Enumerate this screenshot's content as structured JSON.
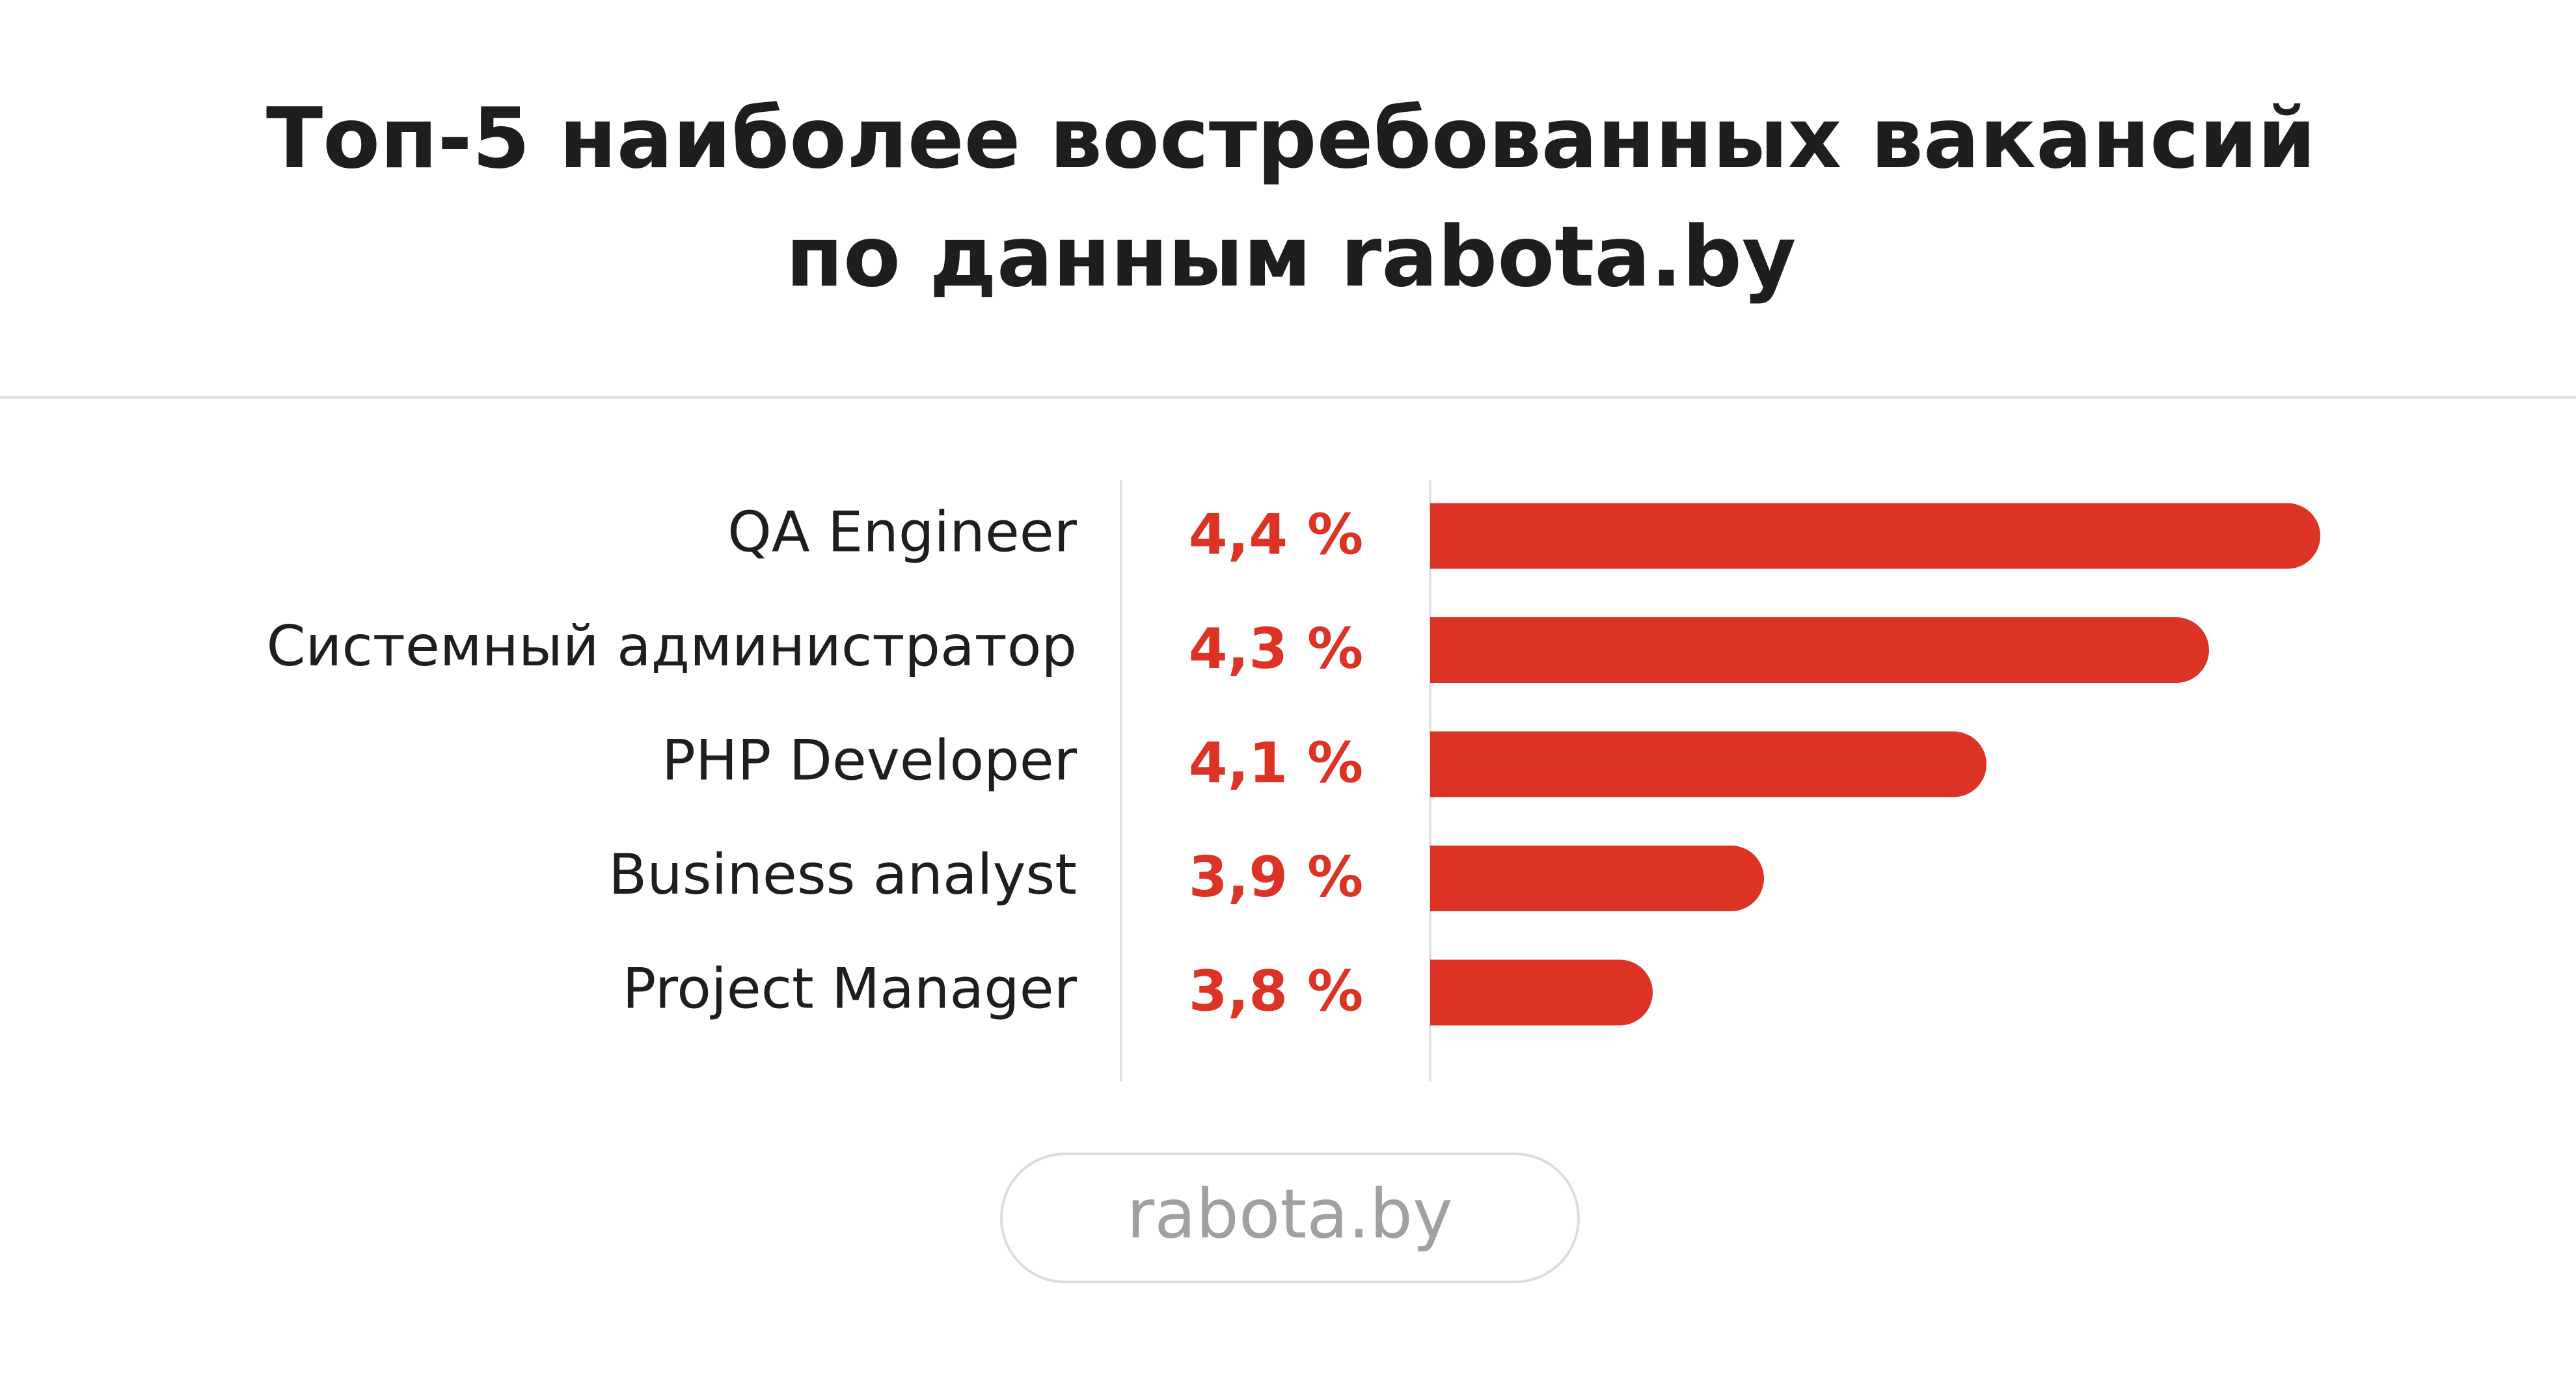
{
  "chart_data": {
    "type": "bar",
    "orientation": "horizontal",
    "title": [
      "Топ-5 наиболее востребованных вакансий",
      "по данным rabota.by"
    ],
    "categories": [
      "QA Engineer",
      "Системный администратор",
      "PHP Developer",
      "Business analyst",
      "Project Manager"
    ],
    "values": [
      4.4,
      4.3,
      4.1,
      3.9,
      3.8
    ],
    "value_labels": [
      "4,4 %",
      "4,3 %",
      "4,1 %",
      "3,9 %",
      "3,8 %"
    ],
    "color": "#dc3325",
    "xlim": [
      3.6,
      4.4
    ],
    "source": "rabota.by"
  }
}
